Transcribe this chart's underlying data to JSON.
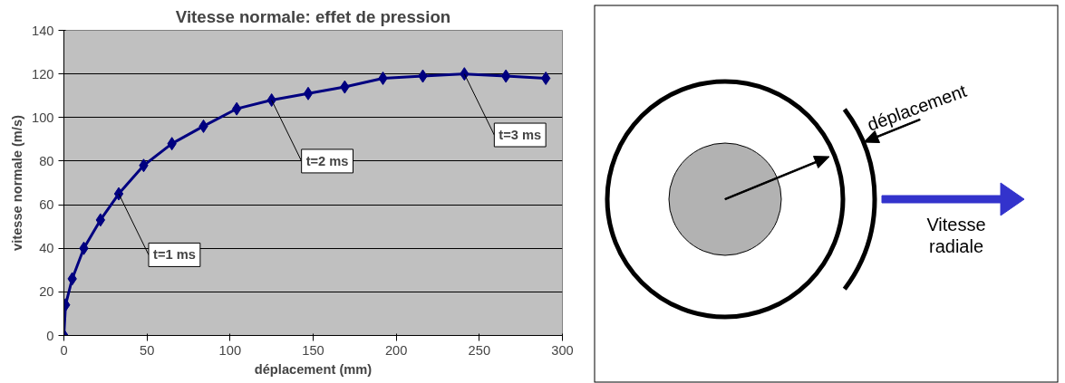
{
  "chart_data": [
    {
      "type": "line",
      "title": "Vitesse normale: effet de pression",
      "xlabel": "déplacement (mm)",
      "ylabel": "vitesse normale (m/s)",
      "x": [
        0,
        1,
        5,
        12,
        22,
        33,
        48,
        65,
        84,
        104,
        125,
        147,
        169,
        192,
        216,
        241,
        266,
        290
      ],
      "series": [
        {
          "color": "#000080",
          "values": [
            0,
            14,
            26,
            40,
            53,
            65,
            78,
            88,
            96,
            104,
            108,
            111,
            114,
            118,
            119,
            120,
            119,
            118
          ]
        }
      ],
      "xlim": [
        0,
        300
      ],
      "xticks": [
        0,
        50,
        100,
        150,
        200,
        250,
        300
      ],
      "ylim": [
        0,
        140
      ],
      "yticks": [
        0,
        20,
        40,
        60,
        80,
        100,
        120,
        140
      ],
      "grid": "y",
      "marker": "diamond",
      "line_style": "solid",
      "annotations": [
        {
          "text": "t=1 ms",
          "x": 33,
          "y": 65
        },
        {
          "text": "t=2 ms",
          "x": 125,
          "y": 108
        },
        {
          "text": "t=3 ms",
          "x": 241,
          "y": 120
        }
      ]
    },
    {
      "type": "other",
      "annotations": [
        "déplacement",
        "Vitesse\nradiale"
      ]
    }
  ]
}
